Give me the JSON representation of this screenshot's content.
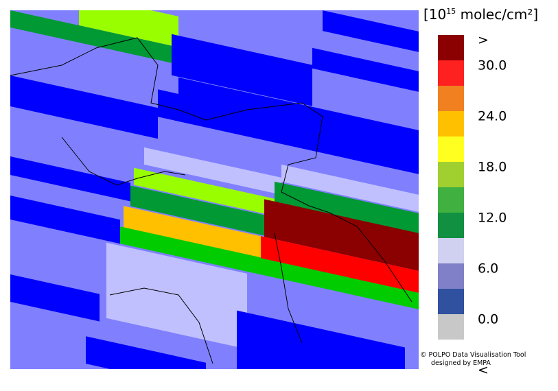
{
  "legend": {
    "unit_prefix": "[10",
    "unit_exponent": "15",
    "unit_suffix": " molec/cm²]",
    "labels": [
      ">",
      "30.0",
      "24.0",
      "18.0",
      "12.0",
      "6.0",
      "0.0",
      "<"
    ]
  },
  "credits": {
    "line1": "© POLPO Data Visualisation Tool",
    "line2": "designed by EMPA"
  }
}
